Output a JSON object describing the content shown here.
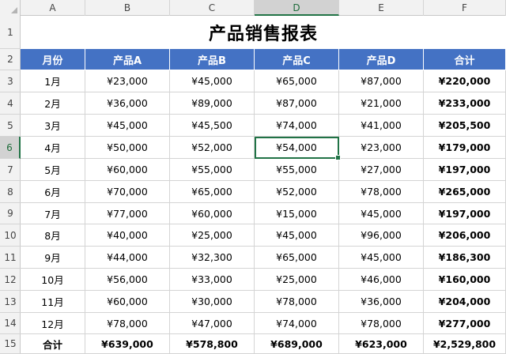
{
  "columns": [
    "A",
    "B",
    "C",
    "D",
    "E",
    "F"
  ],
  "rows": [
    "1",
    "2",
    "3",
    "4",
    "5",
    "6",
    "7",
    "8",
    "9",
    "10",
    "11",
    "12",
    "13",
    "14",
    "15"
  ],
  "title": "产品销售报表",
  "header": [
    "月份",
    "产品A",
    "产品B",
    "产品C",
    "产品D",
    "合计"
  ],
  "data": [
    [
      "1月",
      "¥23,000",
      "¥45,000",
      "¥65,000",
      "¥87,000",
      "¥220,000"
    ],
    [
      "2月",
      "¥36,000",
      "¥89,000",
      "¥87,000",
      "¥21,000",
      "¥233,000"
    ],
    [
      "3月",
      "¥45,000",
      "¥45,500",
      "¥74,000",
      "¥41,000",
      "¥205,500"
    ],
    [
      "4月",
      "¥50,000",
      "¥52,000",
      "¥54,000",
      "¥23,000",
      "¥179,000"
    ],
    [
      "5月",
      "¥60,000",
      "¥55,000",
      "¥55,000",
      "¥27,000",
      "¥197,000"
    ],
    [
      "6月",
      "¥70,000",
      "¥65,000",
      "¥52,000",
      "¥78,000",
      "¥265,000"
    ],
    [
      "7月",
      "¥77,000",
      "¥60,000",
      "¥15,000",
      "¥45,000",
      "¥197,000"
    ],
    [
      "8月",
      "¥40,000",
      "¥25,000",
      "¥45,000",
      "¥96,000",
      "¥206,000"
    ],
    [
      "9月",
      "¥44,000",
      "¥32,300",
      "¥65,000",
      "¥45,000",
      "¥186,300"
    ],
    [
      "10月",
      "¥56,000",
      "¥33,000",
      "¥25,000",
      "¥46,000",
      "¥160,000"
    ],
    [
      "11月",
      "¥60,000",
      "¥30,000",
      "¥78,000",
      "¥36,000",
      "¥204,000"
    ],
    [
      "12月",
      "¥78,000",
      "¥47,000",
      "¥74,000",
      "¥78,000",
      "¥277,000"
    ]
  ],
  "totals": [
    "合计",
    "¥639,000",
    "¥578,800",
    "¥689,000",
    "¥623,000",
    "¥2,529,800"
  ],
  "selection": {
    "column": "D",
    "row": "6"
  },
  "colors": {
    "header_fill": "#4472c4",
    "header_text": "#ffffff",
    "selection": "#217346"
  }
}
